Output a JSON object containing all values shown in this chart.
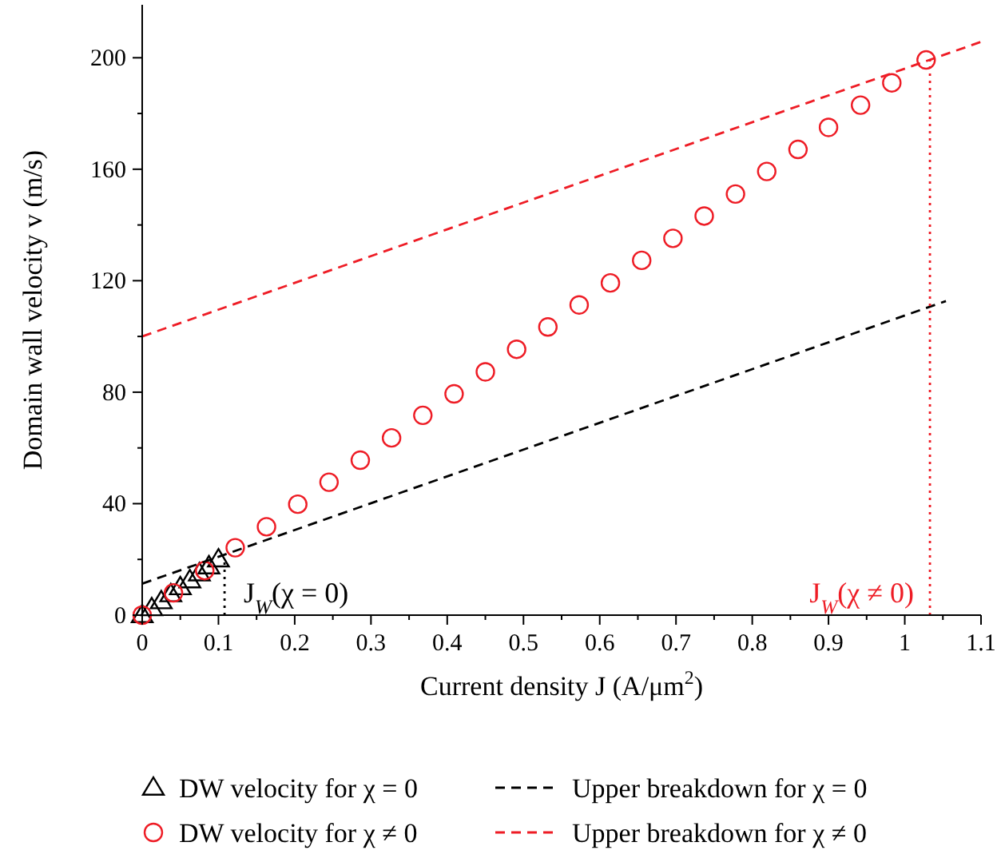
{
  "chart_data": {
    "type": "scatter",
    "xlabel": "Current density J (A/μm$^{2}$)",
    "ylabel": "Domain wall velocity v (m/s)",
    "xlim": [
      0,
      1.1
    ],
    "ylim": [
      0,
      219
    ],
    "xticks": [
      0,
      {
        "value": 0.05,
        "label": null
      },
      0.1,
      {
        "value": 0.15,
        "label": null
      },
      0.2,
      {
        "value": 0.25,
        "label": null
      },
      0.3,
      {
        "value": 0.35,
        "label": null
      },
      0.4,
      {
        "value": 0.45,
        "label": null
      },
      0.5,
      {
        "value": 0.55,
        "label": null
      },
      0.6,
      {
        "value": 0.65,
        "label": null
      },
      0.7,
      {
        "value": 0.75,
        "label": null
      },
      0.8,
      {
        "value": 0.85,
        "label": null
      },
      0.9,
      {
        "value": 0.95,
        "label": null
      },
      1,
      {
        "value": 1.05,
        "label": null
      },
      1.1
    ],
    "yticks": [
      0,
      {
        "value": 20,
        "label": null
      },
      40,
      {
        "value": 60,
        "label": null
      },
      80,
      {
        "value": 100,
        "label": null
      },
      120,
      {
        "value": 140,
        "label": null
      },
      160,
      {
        "value": 180,
        "label": null
      },
      200
    ],
    "grid": false,
    "legend": "bottom",
    "series": [
      {
        "name": "DW velocity for χ = 0",
        "marker": "triangle",
        "color": "#000000",
        "x": [
          0,
          0.0125,
          0.025,
          0.0375,
          0.05,
          0.0625,
          0.075,
          0.0875,
          0.1
        ],
        "values": [
          0,
          2.5,
          5,
          7.5,
          10,
          12.5,
          15,
          17.5,
          20
        ]
      },
      {
        "name": "DW velocity for χ ≠ 0",
        "marker": "circle",
        "color": "#ee1c25",
        "x": [
          0,
          0.041,
          0.082,
          0.122,
          0.163,
          0.204,
          0.245,
          0.286,
          0.327,
          0.368,
          0.409,
          0.45,
          0.491,
          0.532,
          0.573,
          0.614,
          0.655,
          0.696,
          0.737,
          0.778,
          0.819,
          0.86,
          0.9,
          0.942,
          0.983,
          1.028
        ],
        "values": [
          0,
          8,
          16,
          24.2,
          31.7,
          39.8,
          47.7,
          55.6,
          63.6,
          71.7,
          79.4,
          87.3,
          95.4,
          103.4,
          111.3,
          119.2,
          127.3,
          135.2,
          143.2,
          151.1,
          159.2,
          167.1,
          175,
          183,
          191,
          199.2
        ]
      },
      {
        "name": "Upper breakdown for χ = 0",
        "type": "line",
        "marker": "none",
        "line_style": "dashed",
        "color": "#000000",
        "x": [
          0,
          1.054
        ],
        "values": [
          11.3,
          112.7
        ]
      },
      {
        "name": "Upper breakdown for χ ≠ 0",
        "type": "line",
        "marker": "none",
        "line_style": "dashed",
        "color": "#ee1c25",
        "x": [
          0,
          1.1
        ],
        "values": [
          100,
          205.7
        ]
      },
      {
        "type": "line",
        "marker": "none",
        "line_style": "dotted",
        "color": "#000000",
        "x": [
          0.108,
          0.108
        ],
        "values": [
          0,
          20
        ]
      },
      {
        "type": "line",
        "marker": "none",
        "line_style": "dotted",
        "color": "#ee1c25",
        "x": [
          1.033,
          1.033
        ],
        "values": [
          0,
          199.2
        ]
      }
    ],
    "annotations": [
      {
        "text": "J$_{W}$(χ = 0)",
        "x": 0.108,
        "y": 0
      },
      {
        "text": "J$_{W}$(χ ≠ 0)",
        "x": 1.033,
        "y": 0
      }
    ]
  }
}
